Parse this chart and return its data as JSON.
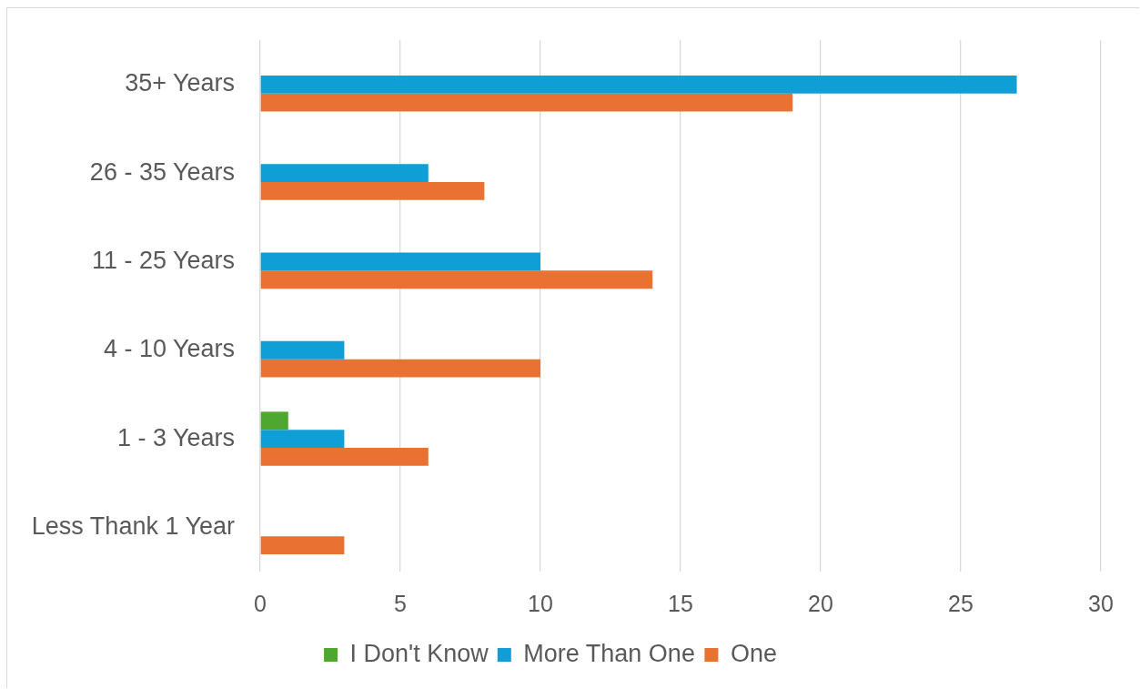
{
  "chart_data": {
    "type": "bar",
    "orientation": "horizontal",
    "categories": [
      "35+ Years",
      "26 - 35 Years",
      "11 - 25 Years",
      "4 - 10 Years",
      "1 - 3 Years",
      "Less Thank 1 Year"
    ],
    "series": [
      {
        "name": "I Don't Know",
        "color": "#4ea72e",
        "values": [
          null,
          null,
          null,
          null,
          1,
          null
        ]
      },
      {
        "name": "More Than One",
        "color": "#0f9ed5",
        "values": [
          27,
          6,
          10,
          3,
          3,
          null
        ]
      },
      {
        "name": "One",
        "color": "#e97132",
        "values": [
          19,
          8,
          14,
          10,
          6,
          3
        ]
      }
    ],
    "xlim": [
      0,
      30
    ],
    "xticks": [
      0,
      5,
      10,
      15,
      20,
      25,
      30
    ],
    "grid": "x",
    "legend": "bottom"
  }
}
